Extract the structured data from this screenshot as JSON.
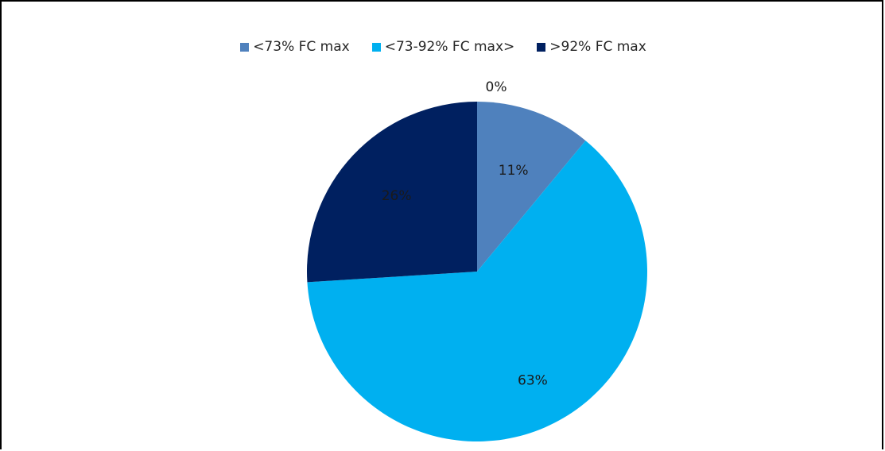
{
  "chart_data": {
    "type": "pie",
    "title": "",
    "categories": [
      "<73% FC max",
      "<73-92% FC max>",
      ">92% FC max"
    ],
    "values": [
      11,
      63,
      26
    ],
    "data_labels": [
      "11%",
      "63%",
      "26%"
    ],
    "extra_labels": [
      {
        "text": "0%"
      }
    ],
    "colors": [
      "#4f81bd",
      "#00b0f0",
      "#002060"
    ],
    "legend_position": "top"
  }
}
